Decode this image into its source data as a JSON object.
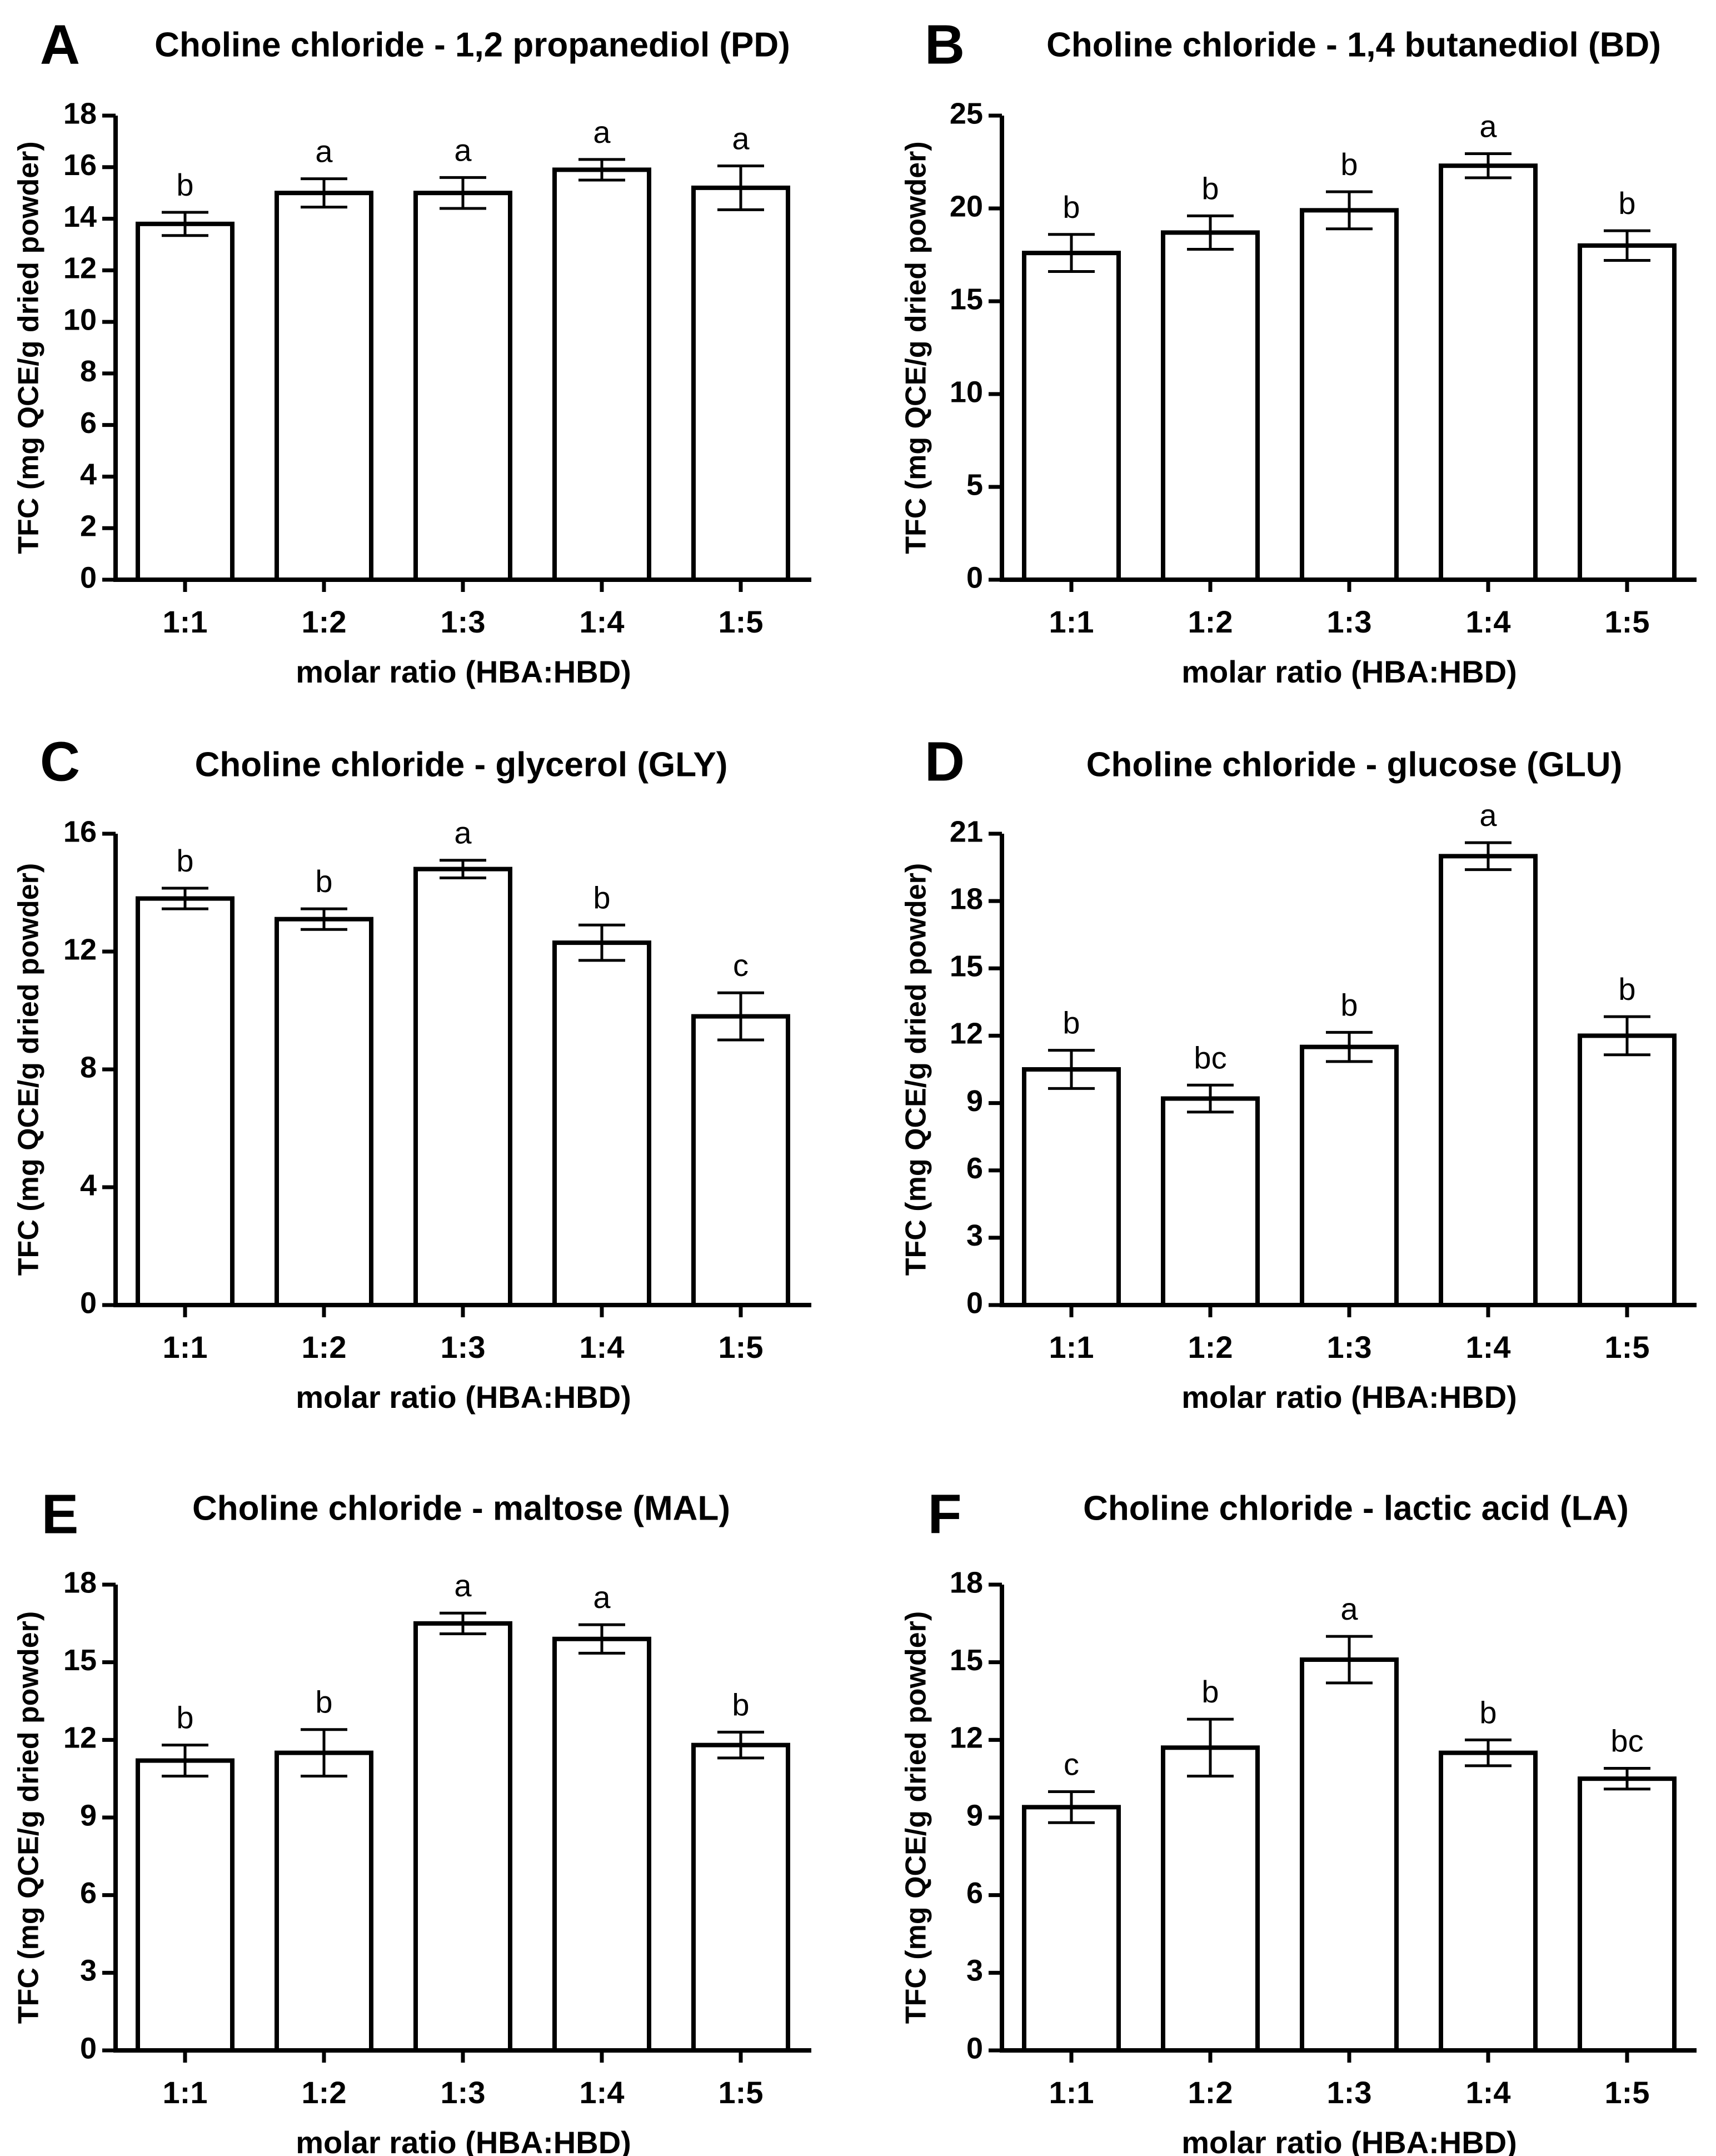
{
  "figure": {
    "xlabel": "molar ratio (HBA:HBD)",
    "ylabel": "TFC (mg QCE/g dried powder)"
  },
  "chart_data": [
    {
      "panel": "A",
      "type": "bar",
      "title": "Choline chloride - 1,2 propanediol (PD)",
      "xlabel": "molar ratio (HBA:HBD)",
      "ylabel": "TFC (mg QCE/g dried powder)",
      "categories": [
        "1:1",
        "1:2",
        "1:3",
        "1:4",
        "1:5"
      ],
      "values": [
        13.8,
        15.0,
        15.0,
        15.9,
        15.2
      ],
      "errors": [
        0.45,
        0.55,
        0.6,
        0.4,
        0.85
      ],
      "significance": [
        "b",
        "a",
        "a",
        "a",
        "a"
      ],
      "ylim": [
        0,
        18
      ],
      "yticks": [
        0,
        2,
        4,
        6,
        8,
        10,
        12,
        14,
        16,
        18
      ]
    },
    {
      "panel": "B",
      "type": "bar",
      "title": "Choline chloride - 1,4 butanediol (BD)",
      "xlabel": "molar ratio (HBA:HBD)",
      "ylabel": "TFC (mg QCE/g dried powder)",
      "categories": [
        "1:1",
        "1:2",
        "1:3",
        "1:4",
        "1:5"
      ],
      "values": [
        17.6,
        18.7,
        19.9,
        22.3,
        18.0
      ],
      "errors": [
        1.0,
        0.9,
        1.0,
        0.65,
        0.8
      ],
      "significance": [
        "b",
        "b",
        "b",
        "a",
        "b"
      ],
      "ylim": [
        0,
        25
      ],
      "yticks": [
        0,
        5,
        10,
        15,
        20,
        25
      ]
    },
    {
      "panel": "C",
      "type": "bar",
      "title": "Choline chloride - glycerol (GLY)",
      "xlabel": "molar ratio (HBA:HBD)",
      "ylabel": "TFC (mg QCE/g dried powder)",
      "categories": [
        "1:1",
        "1:2",
        "1:3",
        "1:4",
        "1:5"
      ],
      "values": [
        13.8,
        13.1,
        14.8,
        12.3,
        9.8
      ],
      "errors": [
        0.35,
        0.35,
        0.3,
        0.6,
        0.8
      ],
      "significance": [
        "b",
        "b",
        "a",
        "b",
        "c"
      ],
      "ylim": [
        0,
        16
      ],
      "yticks": [
        0,
        4,
        8,
        12,
        16
      ]
    },
    {
      "panel": "D",
      "type": "bar",
      "title": "Choline chloride - glucose (GLU)",
      "xlabel": "molar ratio (HBA:HBD)",
      "ylabel": "TFC (mg QCE/g dried powder)",
      "categories": [
        "1:1",
        "1:2",
        "1:3",
        "1:4",
        "1:5"
      ],
      "values": [
        10.5,
        9.2,
        11.5,
        20.0,
        12.0
      ],
      "errors": [
        0.85,
        0.6,
        0.65,
        0.6,
        0.85
      ],
      "significance": [
        "b",
        "bc",
        "b",
        "a",
        "b"
      ],
      "ylim": [
        0,
        21
      ],
      "yticks": [
        0,
        3,
        6,
        9,
        12,
        15,
        18,
        21
      ]
    },
    {
      "panel": "E",
      "type": "bar",
      "title": "Choline chloride - maltose (MAL)",
      "xlabel": "molar ratio (HBA:HBD)",
      "ylabel": "TFC (mg QCE/g dried powder)",
      "categories": [
        "1:1",
        "1:2",
        "1:3",
        "1:4",
        "1:5"
      ],
      "values": [
        11.2,
        11.5,
        16.5,
        15.9,
        11.8
      ],
      "errors": [
        0.6,
        0.9,
        0.4,
        0.55,
        0.5
      ],
      "significance": [
        "b",
        "b",
        "a",
        "a",
        "b"
      ],
      "ylim": [
        0,
        18
      ],
      "yticks": [
        0,
        3,
        6,
        9,
        12,
        15,
        18
      ]
    },
    {
      "panel": "F",
      "type": "bar",
      "title": "Choline chloride - lactic acid (LA)",
      "xlabel": "molar ratio (HBA:HBD)",
      "ylabel": "TFC (mg QCE/g dried powder)",
      "categories": [
        "1:1",
        "1:2",
        "1:3",
        "1:4",
        "1:5"
      ],
      "values": [
        9.4,
        11.7,
        15.1,
        11.5,
        10.5
      ],
      "errors": [
        0.6,
        1.1,
        0.9,
        0.5,
        0.4
      ],
      "significance": [
        "c",
        "b",
        "a",
        "b",
        "bc"
      ],
      "ylim": [
        0,
        18
      ],
      "yticks": [
        0,
        3,
        6,
        9,
        12,
        15,
        18
      ]
    }
  ]
}
